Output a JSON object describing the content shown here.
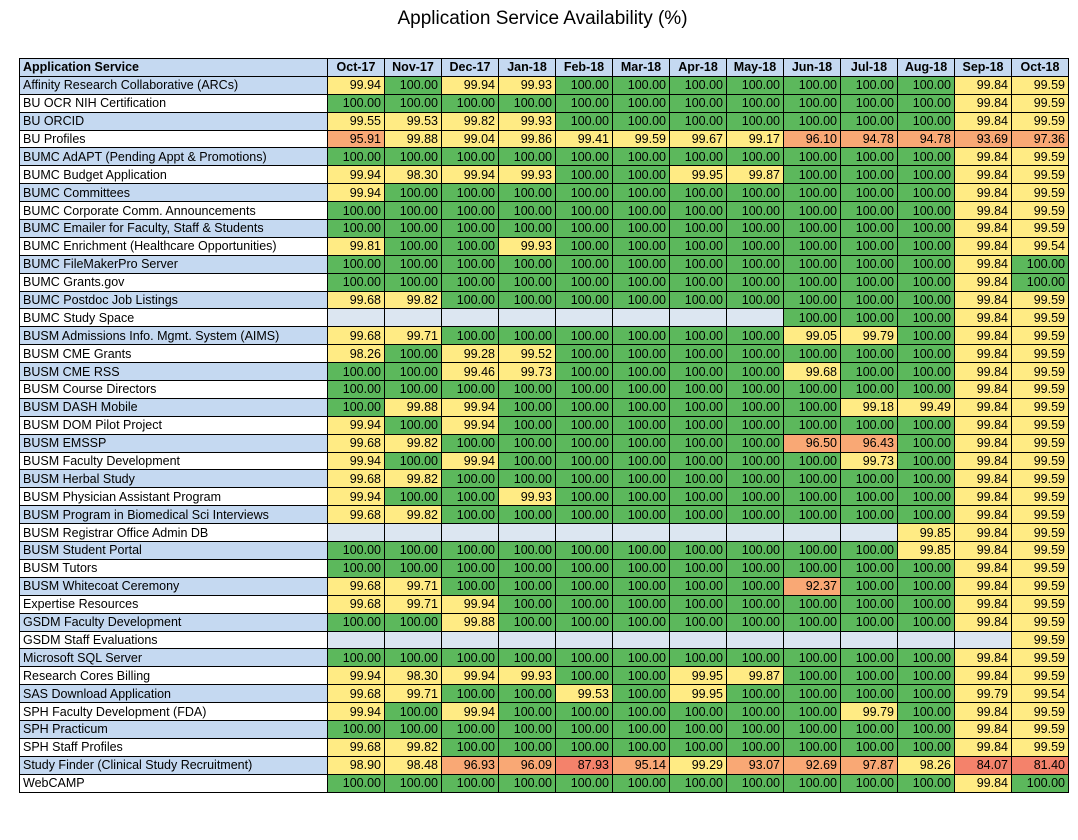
{
  "title": "Application Service Availability (%)",
  "table": {
    "header_label": "Application Service",
    "months": [
      "Oct-17",
      "Nov-17",
      "Dec-17",
      "Jan-18",
      "Feb-18",
      "Mar-18",
      "Apr-18",
      "May-18",
      "Jun-18",
      "Jul-18",
      "Aug-18",
      "Sep-18",
      "Oct-18"
    ],
    "colors": {
      "green": "#5cb85c",
      "yellow": "#ffeb84",
      "orange": "#f9a875",
      "red": "#f4826b",
      "empty": "#dce6f1",
      "name_band": "#c5d9f1"
    },
    "rows": [
      {
        "name": "Affinity Research Collaborative (ARCs)",
        "values": [
          "99.94",
          "100.00",
          "99.94",
          "99.93",
          "100.00",
          "100.00",
          "100.00",
          "100.00",
          "100.00",
          "100.00",
          "100.00",
          "99.84",
          "99.59"
        ]
      },
      {
        "name": "BU OCR NIH Certification",
        "values": [
          "100.00",
          "100.00",
          "100.00",
          "100.00",
          "100.00",
          "100.00",
          "100.00",
          "100.00",
          "100.00",
          "100.00",
          "100.00",
          "99.84",
          "99.59"
        ]
      },
      {
        "name": "BU ORCID",
        "values": [
          "99.55",
          "99.53",
          "99.82",
          "99.93",
          "100.00",
          "100.00",
          "100.00",
          "100.00",
          "100.00",
          "100.00",
          "100.00",
          "99.84",
          "99.59"
        ]
      },
      {
        "name": "BU Profiles",
        "values": [
          "95.91",
          "99.88",
          "99.04",
          "99.86",
          "99.41",
          "99.59",
          "99.67",
          "99.17",
          "96.10",
          "94.78",
          "94.78",
          "93.69",
          "97.36"
        ]
      },
      {
        "name": "BUMC AdAPT (Pending Appt & Promotions)",
        "values": [
          "100.00",
          "100.00",
          "100.00",
          "100.00",
          "100.00",
          "100.00",
          "100.00",
          "100.00",
          "100.00",
          "100.00",
          "100.00",
          "99.84",
          "99.59"
        ]
      },
      {
        "name": "BUMC Budget Application",
        "values": [
          "99.94",
          "98.30",
          "99.94",
          "99.93",
          "100.00",
          "100.00",
          "99.95",
          "99.87",
          "100.00",
          "100.00",
          "100.00",
          "99.84",
          "99.59"
        ]
      },
      {
        "name": "BUMC Committees",
        "values": [
          "99.94",
          "100.00",
          "100.00",
          "100.00",
          "100.00",
          "100.00",
          "100.00",
          "100.00",
          "100.00",
          "100.00",
          "100.00",
          "99.84",
          "99.59"
        ]
      },
      {
        "name": "BUMC Corporate Comm. Announcements",
        "values": [
          "100.00",
          "100.00",
          "100.00",
          "100.00",
          "100.00",
          "100.00",
          "100.00",
          "100.00",
          "100.00",
          "100.00",
          "100.00",
          "99.84",
          "99.59"
        ]
      },
      {
        "name": "BUMC Emailer for Faculty, Staff & Students",
        "values": [
          "100.00",
          "100.00",
          "100.00",
          "100.00",
          "100.00",
          "100.00",
          "100.00",
          "100.00",
          "100.00",
          "100.00",
          "100.00",
          "99.84",
          "99.59"
        ]
      },
      {
        "name": "BUMC Enrichment (Healthcare Opportunities)",
        "values": [
          "99.81",
          "100.00",
          "100.00",
          "99.93",
          "100.00",
          "100.00",
          "100.00",
          "100.00",
          "100.00",
          "100.00",
          "100.00",
          "99.84",
          "99.54"
        ]
      },
      {
        "name": "BUMC FileMakerPro Server",
        "values": [
          "100.00",
          "100.00",
          "100.00",
          "100.00",
          "100.00",
          "100.00",
          "100.00",
          "100.00",
          "100.00",
          "100.00",
          "100.00",
          "99.84",
          "100.00"
        ]
      },
      {
        "name": "BUMC Grants.gov",
        "values": [
          "100.00",
          "100.00",
          "100.00",
          "100.00",
          "100.00",
          "100.00",
          "100.00",
          "100.00",
          "100.00",
          "100.00",
          "100.00",
          "99.84",
          "100.00"
        ]
      },
      {
        "name": "BUMC Postdoc Job Listings",
        "values": [
          "99.68",
          "99.82",
          "100.00",
          "100.00",
          "100.00",
          "100.00",
          "100.00",
          "100.00",
          "100.00",
          "100.00",
          "100.00",
          "99.84",
          "99.59"
        ]
      },
      {
        "name": "BUMC Study Space",
        "values": [
          "",
          "",
          "",
          "",
          "",
          "",
          "",
          "",
          "100.00",
          "100.00",
          "100.00",
          "99.84",
          "99.59"
        ]
      },
      {
        "name": "BUSM Admissions Info. Mgmt. System (AIMS)",
        "values": [
          "99.68",
          "99.71",
          "100.00",
          "100.00",
          "100.00",
          "100.00",
          "100.00",
          "100.00",
          "99.05",
          "99.79",
          "100.00",
          "99.84",
          "99.59"
        ]
      },
      {
        "name": "BUSM CME Grants",
        "values": [
          "98.26",
          "100.00",
          "99.28",
          "99.52",
          "100.00",
          "100.00",
          "100.00",
          "100.00",
          "100.00",
          "100.00",
          "100.00",
          "99.84",
          "99.59"
        ]
      },
      {
        "name": "BUSM CME RSS",
        "values": [
          "100.00",
          "100.00",
          "99.46",
          "99.73",
          "100.00",
          "100.00",
          "100.00",
          "100.00",
          "99.68",
          "100.00",
          "100.00",
          "99.84",
          "99.59"
        ]
      },
      {
        "name": "BUSM Course Directors",
        "values": [
          "100.00",
          "100.00",
          "100.00",
          "100.00",
          "100.00",
          "100.00",
          "100.00",
          "100.00",
          "100.00",
          "100.00",
          "100.00",
          "99.84",
          "99.59"
        ]
      },
      {
        "name": "BUSM DASH Mobile",
        "values": [
          "100.00",
          "99.88",
          "99.94",
          "100.00",
          "100.00",
          "100.00",
          "100.00",
          "100.00",
          "100.00",
          "99.18",
          "99.49",
          "99.84",
          "99.59"
        ]
      },
      {
        "name": "BUSM DOM Pilot Project",
        "values": [
          "99.94",
          "100.00",
          "99.94",
          "100.00",
          "100.00",
          "100.00",
          "100.00",
          "100.00",
          "100.00",
          "100.00",
          "100.00",
          "99.84",
          "99.59"
        ]
      },
      {
        "name": "BUSM EMSSP",
        "values": [
          "99.68",
          "99.82",
          "100.00",
          "100.00",
          "100.00",
          "100.00",
          "100.00",
          "100.00",
          "96.50",
          "96.43",
          "100.00",
          "99.84",
          "99.59"
        ]
      },
      {
        "name": "BUSM Faculty Development",
        "values": [
          "99.94",
          "100.00",
          "99.94",
          "100.00",
          "100.00",
          "100.00",
          "100.00",
          "100.00",
          "100.00",
          "99.73",
          "100.00",
          "99.84",
          "99.59"
        ]
      },
      {
        "name": "BUSM Herbal Study",
        "values": [
          "99.68",
          "99.82",
          "100.00",
          "100.00",
          "100.00",
          "100.00",
          "100.00",
          "100.00",
          "100.00",
          "100.00",
          "100.00",
          "99.84",
          "99.59"
        ]
      },
      {
        "name": "BUSM Physician Assistant Program",
        "values": [
          "99.94",
          "100.00",
          "100.00",
          "99.93",
          "100.00",
          "100.00",
          "100.00",
          "100.00",
          "100.00",
          "100.00",
          "100.00",
          "99.84",
          "99.59"
        ]
      },
      {
        "name": "BUSM Program in Biomedical Sci Interviews",
        "values": [
          "99.68",
          "99.82",
          "100.00",
          "100.00",
          "100.00",
          "100.00",
          "100.00",
          "100.00",
          "100.00",
          "100.00",
          "100.00",
          "99.84",
          "99.59"
        ]
      },
      {
        "name": "BUSM Registrar Office Admin DB",
        "values": [
          "",
          "",
          "",
          "",
          "",
          "",
          "",
          "",
          "",
          "",
          "99.85",
          "99.84",
          "99.59"
        ]
      },
      {
        "name": "BUSM Student Portal",
        "values": [
          "100.00",
          "100.00",
          "100.00",
          "100.00",
          "100.00",
          "100.00",
          "100.00",
          "100.00",
          "100.00",
          "100.00",
          "99.85",
          "99.84",
          "99.59"
        ]
      },
      {
        "name": "BUSM Tutors",
        "values": [
          "100.00",
          "100.00",
          "100.00",
          "100.00",
          "100.00",
          "100.00",
          "100.00",
          "100.00",
          "100.00",
          "100.00",
          "100.00",
          "99.84",
          "99.59"
        ]
      },
      {
        "name": "BUSM Whitecoat Ceremony",
        "values": [
          "99.68",
          "99.71",
          "100.00",
          "100.00",
          "100.00",
          "100.00",
          "100.00",
          "100.00",
          "92.37",
          "100.00",
          "100.00",
          "99.84",
          "99.59"
        ]
      },
      {
        "name": "Expertise Resources",
        "values": [
          "99.68",
          "99.71",
          "99.94",
          "100.00",
          "100.00",
          "100.00",
          "100.00",
          "100.00",
          "100.00",
          "100.00",
          "100.00",
          "99.84",
          "99.59"
        ]
      },
      {
        "name": "GSDM Faculty Development",
        "values": [
          "100.00",
          "100.00",
          "99.88",
          "100.00",
          "100.00",
          "100.00",
          "100.00",
          "100.00",
          "100.00",
          "100.00",
          "100.00",
          "99.84",
          "99.59"
        ]
      },
      {
        "name": "GSDM Staff Evaluations",
        "values": [
          "",
          "",
          "",
          "",
          "",
          "",
          "",
          "",
          "",
          "",
          "",
          "",
          "99.59"
        ]
      },
      {
        "name": "Microsoft SQL Server",
        "values": [
          "100.00",
          "100.00",
          "100.00",
          "100.00",
          "100.00",
          "100.00",
          "100.00",
          "100.00",
          "100.00",
          "100.00",
          "100.00",
          "99.84",
          "99.59"
        ]
      },
      {
        "name": "Research Cores Billing",
        "values": [
          "99.94",
          "98.30",
          "99.94",
          "99.93",
          "100.00",
          "100.00",
          "99.95",
          "99.87",
          "100.00",
          "100.00",
          "100.00",
          "99.84",
          "99.59"
        ]
      },
      {
        "name": "SAS Download Application",
        "values": [
          "99.68",
          "99.71",
          "100.00",
          "100.00",
          "99.53",
          "100.00",
          "99.95",
          "100.00",
          "100.00",
          "100.00",
          "100.00",
          "99.79",
          "99.54"
        ]
      },
      {
        "name": "SPH Faculty Development (FDA)",
        "values": [
          "99.94",
          "100.00",
          "99.94",
          "100.00",
          "100.00",
          "100.00",
          "100.00",
          "100.00",
          "100.00",
          "99.79",
          "100.00",
          "99.84",
          "99.59"
        ]
      },
      {
        "name": "SPH Practicum",
        "values": [
          "100.00",
          "100.00",
          "100.00",
          "100.00",
          "100.00",
          "100.00",
          "100.00",
          "100.00",
          "100.00",
          "100.00",
          "100.00",
          "99.84",
          "99.59"
        ]
      },
      {
        "name": "SPH Staff Profiles",
        "values": [
          "99.68",
          "99.82",
          "100.00",
          "100.00",
          "100.00",
          "100.00",
          "100.00",
          "100.00",
          "100.00",
          "100.00",
          "100.00",
          "99.84",
          "99.59"
        ]
      },
      {
        "name": "Study Finder (Clinical Study Recruitment)",
        "values": [
          "98.90",
          "98.48",
          "96.93",
          "96.09",
          "87.93",
          "95.14",
          "99.29",
          "93.07",
          "92.69",
          "97.87",
          "98.26",
          "84.07",
          "81.40"
        ]
      },
      {
        "name": "WebCAMP",
        "values": [
          "100.00",
          "100.00",
          "100.00",
          "100.00",
          "100.00",
          "100.00",
          "100.00",
          "100.00",
          "100.00",
          "100.00",
          "100.00",
          "99.84",
          "100.00"
        ]
      }
    ]
  }
}
